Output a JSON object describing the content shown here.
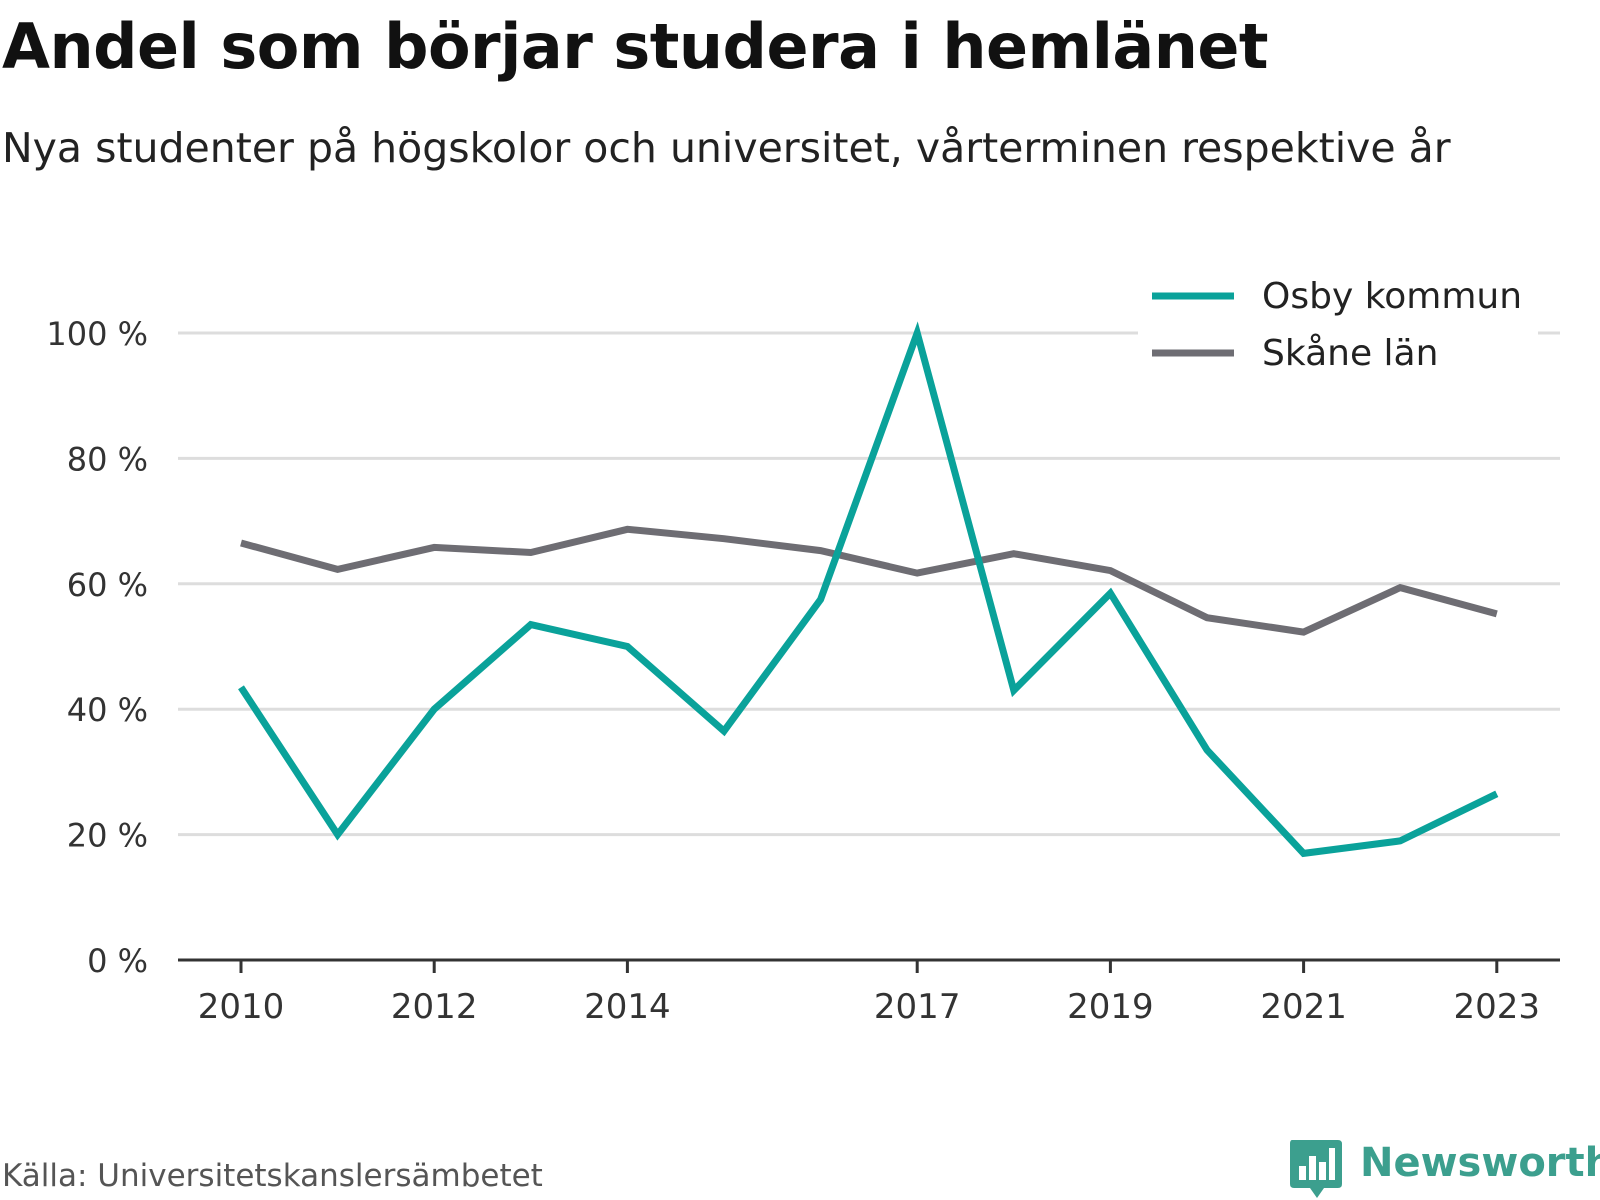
{
  "title": "Andel som börjar studera i hemlänet",
  "subtitle": "Nya studenter på högskolor och universitet, vårterminen respektive år",
  "source": "Källa: Universitetskanslersämbetet",
  "brand": "Newsworthy",
  "colors": {
    "osby": "#0aa29a",
    "skane": "#6e6d73",
    "grid": "#dddddd",
    "axis": "#333333",
    "brand": "#3c9f8e"
  },
  "chart_data": {
    "type": "line",
    "x": [
      2010,
      2011,
      2012,
      2013,
      2014,
      2015,
      2016,
      2017,
      2018,
      2019,
      2020,
      2021,
      2022,
      2023
    ],
    "x_tick_labels": [
      "2010",
      "2012",
      "2014",
      "2017",
      "2019",
      "2021",
      "2023"
    ],
    "y_ticks": [
      0,
      20,
      40,
      60,
      80,
      100
    ],
    "y_tick_labels": [
      "0 %",
      "20 %",
      "40 %",
      "60 %",
      "80 %",
      "100 %"
    ],
    "ylim": [
      0,
      100
    ],
    "grid": true,
    "legend_position": "top-right",
    "series": [
      {
        "name": "Osby kommun",
        "color": "#0aa29a",
        "values": [
          43.5,
          20,
          40,
          53.5,
          50,
          36.5,
          57.5,
          100,
          43,
          58.5,
          33.5,
          17,
          19,
          26.5
        ]
      },
      {
        "name": "Skåne län",
        "color": "#6e6d73",
        "values": [
          66.5,
          62.3,
          65.8,
          65,
          68.7,
          67.2,
          65.3,
          61.7,
          64.8,
          62.1,
          54.6,
          52.3,
          59.4,
          55.2
        ]
      }
    ]
  }
}
